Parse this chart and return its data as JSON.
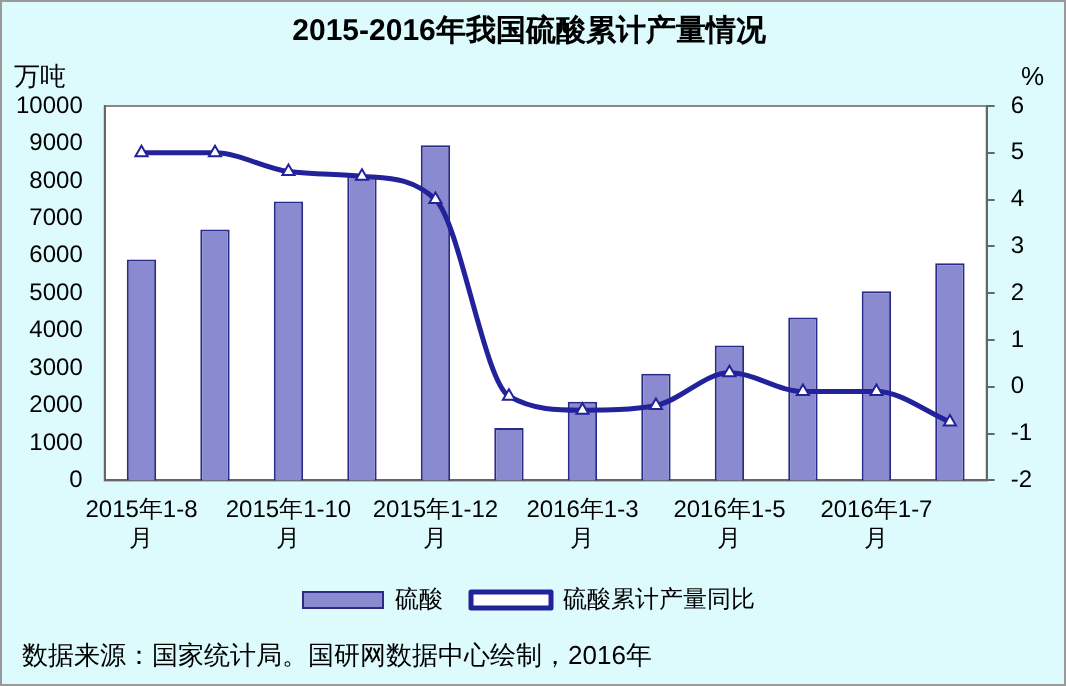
{
  "chart_data": {
    "type": "bar",
    "title": "2015-2016年我国硫酸累计产量情况",
    "ylabel": "万吨",
    "y2label": "%",
    "categories": [
      [
        "2015年1-8",
        "月"
      ],
      null,
      [
        "2015年1-10",
        "月"
      ],
      null,
      [
        "2015年1-12",
        "月"
      ],
      null,
      [
        "2016年1-3",
        "月"
      ],
      null,
      [
        "2016年1-5",
        "月"
      ],
      null,
      [
        "2016年1-7",
        "月"
      ],
      null
    ],
    "series": [
      {
        "name": "硫酸",
        "color": "#8a8ad0",
        "values": [
          5900,
          6700,
          7450,
          8150,
          8950,
          1400,
          2100,
          2850,
          3600,
          4350,
          5050,
          5800
        ]
      },
      {
        "name": "硫酸累计产量同比",
        "type": "line",
        "axis": "y2",
        "color": "#22229a",
        "marker": "triangle",
        "values": [
          5.0,
          5.0,
          4.6,
          4.5,
          4.0,
          -0.2,
          -0.5,
          -0.4,
          0.3,
          -0.1,
          -0.1,
          -0.75
        ]
      }
    ],
    "ylim": [
      0,
      10000
    ],
    "yticks": [
      0,
      1000,
      2000,
      3000,
      4000,
      5000,
      6000,
      7000,
      8000,
      9000,
      10000
    ],
    "y2lim": [
      -2,
      6
    ],
    "y2ticks": [
      -2,
      -1,
      0,
      1,
      2,
      3,
      4,
      5,
      6
    ],
    "grid": false,
    "legend": "bottom",
    "annotations": [
      "数据来源：国家统计局。国研网数据中心绘制，2016年"
    ]
  }
}
